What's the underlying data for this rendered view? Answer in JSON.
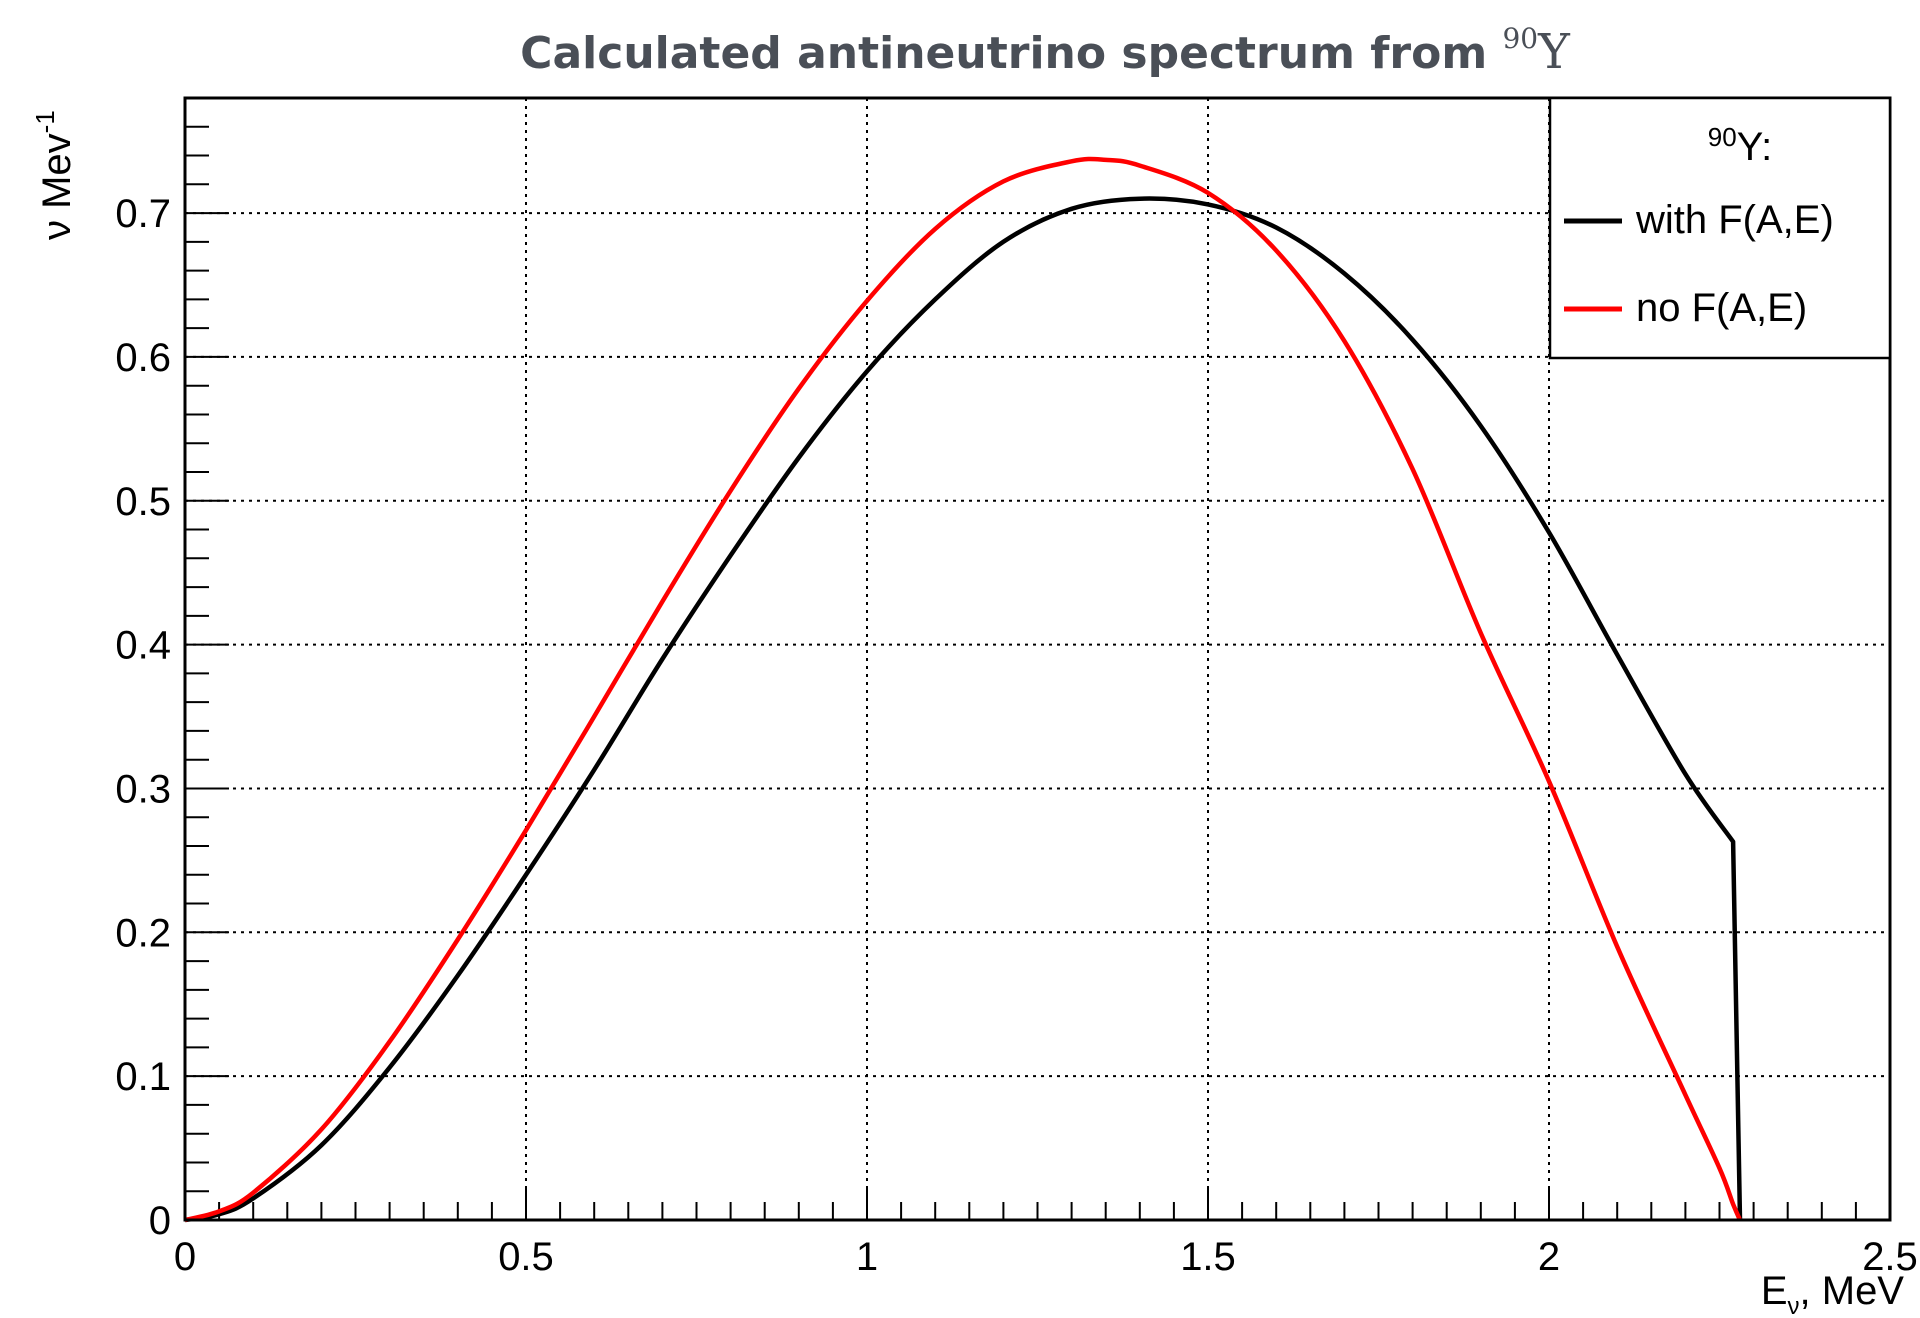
{
  "chart_data": {
    "type": "line",
    "title": {
      "text": "Calculated antineutrino spectrum from ",
      "isotope_mass": "90",
      "isotope_symbol": "Y"
    },
    "xlabel": {
      "main": "E",
      "sub": "ν",
      "rest": ", MeV"
    },
    "ylabel": {
      "main": "ν Mev",
      "sup": "-1"
    },
    "xlim": [
      0,
      2.5
    ],
    "ylim": [
      0,
      0.78
    ],
    "x_ticks": [
      0,
      0.5,
      1,
      1.5,
      2,
      2.5
    ],
    "x_tick_labels": [
      "0",
      "0.5",
      "1",
      "1.5",
      "2",
      "2.5"
    ],
    "y_ticks": [
      0,
      0.1,
      0.2,
      0.3,
      0.4,
      0.5,
      0.6,
      0.7
    ],
    "y_tick_labels": [
      "0",
      "0.1",
      "0.2",
      "0.3",
      "0.4",
      "0.5",
      "0.6",
      "0.7"
    ],
    "grid": true,
    "legend": {
      "position": "top-right",
      "header_sup": "90",
      "header_text": "Y:"
    },
    "series": [
      {
        "name": "with F(A,E)",
        "color": "#000000",
        "x": [
          0,
          0.05,
          0.1,
          0.2,
          0.3,
          0.4,
          0.5,
          0.6,
          0.7,
          0.8,
          0.9,
          1.0,
          1.1,
          1.2,
          1.3,
          1.4,
          1.5,
          1.6,
          1.7,
          1.8,
          1.9,
          2.0,
          2.1,
          2.2,
          2.27,
          2.28
        ],
        "values": [
          0,
          0.004,
          0.015,
          0.052,
          0.106,
          0.17,
          0.24,
          0.313,
          0.39,
          0.462,
          0.53,
          0.59,
          0.64,
          0.68,
          0.703,
          0.71,
          0.706,
          0.69,
          0.658,
          0.612,
          0.552,
          0.478,
          0.393,
          0.31,
          0.263,
          0.0
        ]
      },
      {
        "name": "no F(A,E)",
        "color": "#ff0000",
        "x": [
          0,
          0.05,
          0.1,
          0.2,
          0.3,
          0.4,
          0.5,
          0.6,
          0.7,
          0.8,
          0.9,
          1.0,
          1.1,
          1.2,
          1.3,
          1.35,
          1.4,
          1.5,
          1.6,
          1.7,
          1.8,
          1.9,
          2.0,
          2.1,
          2.2,
          2.25,
          2.27,
          2.28
        ],
        "values": [
          0,
          0.006,
          0.019,
          0.063,
          0.124,
          0.195,
          0.271,
          0.35,
          0.43,
          0.507,
          0.578,
          0.639,
          0.689,
          0.722,
          0.736,
          0.737,
          0.733,
          0.714,
          0.674,
          0.611,
          0.522,
          0.408,
          0.305,
          0.19,
          0.087,
          0.036,
          0.011,
          0.0
        ]
      }
    ]
  }
}
